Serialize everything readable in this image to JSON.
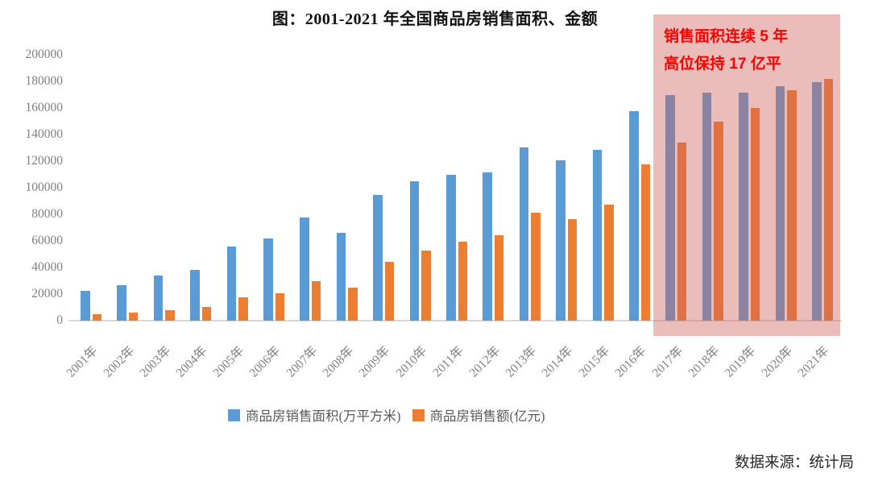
{
  "title": "图：2001-2021 年全国商品房销售面积、金额",
  "annotation": {
    "line1": "销售面积连续 5 年",
    "line2": "高位保持 17 亿平"
  },
  "source": "数据来源：统计局",
  "colors": {
    "series_area": "#5B9BD5",
    "series_amount": "#ED7D31",
    "highlight_fill": "rgba(205,98,91,0.42)",
    "annotation_text": "#FE0000",
    "axis_labels": "#808080",
    "axis_line": "#D8D8D8"
  },
  "chart_data": {
    "type": "bar",
    "title": "图：2001-2021 年全国商品房销售面积、金额",
    "categories": [
      "2001年",
      "2002年",
      "2003年",
      "2004年",
      "2005年",
      "2006年",
      "2007年",
      "2008年",
      "2009年",
      "2010年",
      "2011年",
      "2012年",
      "2013年",
      "2014年",
      "2015年",
      "2016年",
      "2017年",
      "2018年",
      "2019年",
      "2020年",
      "2021年"
    ],
    "series": [
      {
        "name": "商品房销售面积(万平方米)",
        "color": "#5B9BD5",
        "values": [
          22412,
          26808,
          33718,
          38232,
          55486,
          61857,
          77355,
          65970,
          94755,
          104765,
          109946,
          111304,
          130551,
          120649,
          128495,
          157349,
          169408,
          171654,
          171558,
          176086,
          179433
        ]
      },
      {
        "name": "商品房销售额(亿元)",
        "color": "#ED7D31",
        "values": [
          4863,
          6032,
          7956,
          10376,
          17576,
          20826,
          29889,
          25068,
          44355,
          52721,
          59119,
          64456,
          81428,
          76292,
          87281,
          117627,
          133701,
          149973,
          159725,
          173613,
          181930
        ]
      }
    ],
    "xlabel": "",
    "ylabel": "",
    "ylim": [
      0,
      200000
    ],
    "ytick_step": 20000,
    "grid": false,
    "legend_position": "bottom",
    "highlight": {
      "from": "2017年",
      "to": "2021年",
      "label": "销售面积连续 5 年高位保持 17 亿平"
    }
  }
}
